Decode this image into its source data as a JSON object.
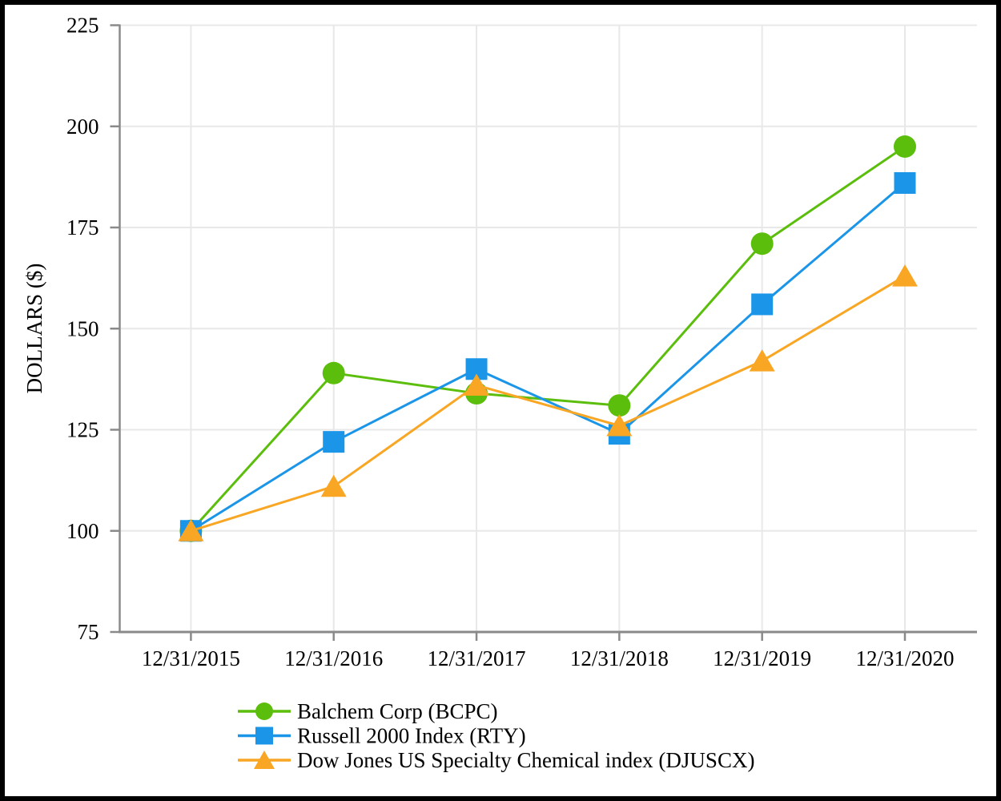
{
  "figure": {
    "background_color": "#ffffff",
    "frame_color": "#000000",
    "axis_color": "#8a8a8a",
    "grid_color": "#e8e8e8",
    "text_color": "#000000"
  },
  "chart_data": {
    "type": "line",
    "title": "",
    "xlabel": "",
    "ylabel": "DOLLARS ($)",
    "ylim": [
      75,
      225
    ],
    "yticks": [
      225,
      200,
      175,
      150,
      125,
      100,
      75
    ],
    "grid": true,
    "legend_position": "bottom-left",
    "categories": [
      "12/31/2015",
      "12/31/2016",
      "12/31/2017",
      "12/31/2018",
      "12/31/2019",
      "12/31/2020"
    ],
    "series": [
      {
        "key": "bcpc",
        "name": "Balchem Corp (BCPC)",
        "marker": "circle",
        "color": "#5cbe0c",
        "values": [
          100,
          139,
          134,
          131,
          171,
          195
        ]
      },
      {
        "key": "rty",
        "name": "Russell 2000 Index (RTY)",
        "marker": "square",
        "color": "#1b95e8",
        "values": [
          100,
          122,
          140,
          124,
          156,
          186
        ]
      },
      {
        "key": "djuscx",
        "name": "Dow Jones US Specialty Chemical index (DJUSCX)",
        "marker": "triangle",
        "color": "#f8a623",
        "values": [
          100,
          111,
          136,
          126,
          142,
          163
        ]
      }
    ]
  }
}
